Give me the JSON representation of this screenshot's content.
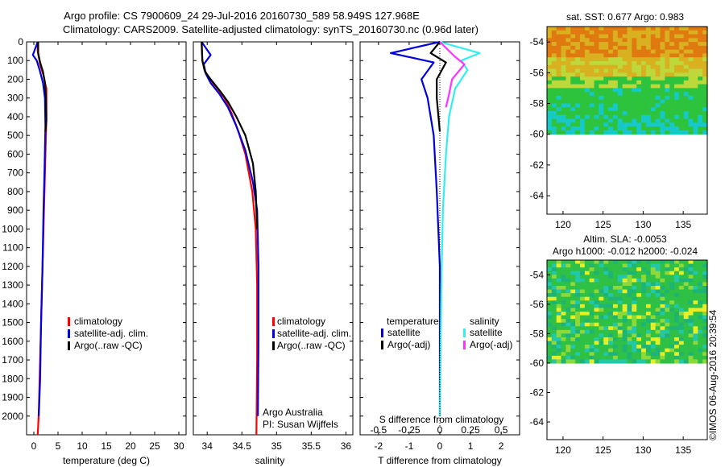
{
  "header": {
    "title_line1": "Argo profile: CS 7900609_24 29-Jul-2016 20160730_589 58.949S 127.968E",
    "title_line2": "Climatology: CARS2009. Satellite-adjusted climatology: synTS_20160730.nc (0.96d later)"
  },
  "footer": {
    "credit": "©IMOS 06-Aug-2016 20:39:54",
    "argo_australia": "Argo Australia",
    "pi": "PI: Susan Wijffels"
  },
  "colors": {
    "climatology": "#ff0000",
    "satellite": "#0000dd",
    "argo": "#000000",
    "sal_satellite": "#33eeee",
    "sal_argo": "#ff33ff"
  },
  "chart_data": [
    {
      "id": "temperature",
      "type": "line",
      "xlabel": "temperature (deg C)",
      "xlim": [
        -1.5,
        31.5
      ],
      "xticks": [
        "0",
        "5",
        "10",
        "15",
        "20",
        "25",
        "30"
      ],
      "xtick_values": [
        0,
        5,
        10,
        15,
        20,
        25,
        30
      ],
      "ylim": [
        2100,
        0
      ],
      "yticks": [
        "0",
        "100",
        "200",
        "300",
        "400",
        "500",
        "600",
        "700",
        "800",
        "900",
        "1000",
        "1100",
        "1200",
        "1300",
        "1400",
        "1500",
        "1600",
        "1700",
        "1800",
        "1900",
        "2000"
      ],
      "ytick_values": [
        0,
        100,
        200,
        300,
        400,
        500,
        600,
        700,
        800,
        900,
        1000,
        1100,
        1200,
        1300,
        1400,
        1500,
        1600,
        1700,
        1800,
        1900,
        2000
      ],
      "legend": [
        "climatology",
        "satellite-adj. clim.",
        "Argo(..raw -QC)"
      ],
      "series": [
        {
          "name": "climatology",
          "color": "#ff0000",
          "x": [
            0.8,
            0.8,
            1.3,
            2.0,
            2.6,
            2.6,
            2.4,
            2.2,
            2.0,
            1.8,
            1.5,
            1.2,
            1.0,
            0.8
          ],
          "y": [
            0,
            50,
            120,
            180,
            250,
            400,
            600,
            800,
            1000,
            1200,
            1500,
            1800,
            2000,
            2100
          ]
        },
        {
          "name": "satellite-adj. clim.",
          "color": "#0000dd",
          "x": [
            0.8,
            -0.2,
            0.6,
            1.2,
            1.9,
            2.3,
            2.4,
            2.2,
            2.0,
            1.8,
            1.5,
            1.3,
            1.1,
            1.0
          ],
          "y": [
            0,
            70,
            100,
            150,
            220,
            300,
            450,
            700,
            900,
            1200,
            1500,
            1800,
            1950,
            2000
          ]
        },
        {
          "name": "Argo(..raw -QC)",
          "color": "#000000",
          "x": [
            0.9,
            0.9,
            1.3,
            1.9,
            2.3,
            2.5,
            2.6,
            2.4
          ],
          "y": [
            0,
            60,
            110,
            160,
            220,
            300,
            420,
            480
          ]
        }
      ]
    },
    {
      "id": "salinity",
      "type": "line",
      "xlabel": "salinity",
      "xlim": [
        33.8,
        36.1
      ],
      "xticks": [
        "34",
        "34.5",
        "35",
        "35.5",
        "36"
      ],
      "xtick_values": [
        34,
        34.5,
        35,
        35.5,
        36
      ],
      "ylim": [
        2100,
        0
      ],
      "legend": [
        "climatology",
        "satellite-adj. clim.",
        "Argo(..raw -QC)"
      ],
      "series": [
        {
          "name": "climatology",
          "color": "#ff0000",
          "x": [
            33.92,
            33.93,
            33.96,
            34.04,
            34.15,
            34.25,
            34.35,
            34.45,
            34.55,
            34.65,
            34.7,
            34.72,
            34.72,
            34.71
          ],
          "y": [
            0,
            100,
            150,
            200,
            250,
            300,
            380,
            480,
            600,
            800,
            1000,
            1300,
            1700,
            2100
          ]
        },
        {
          "name": "satellite-adj. clim.",
          "color": "#0000dd",
          "x": [
            33.92,
            34.05,
            33.95,
            33.98,
            34.05,
            34.18,
            34.3,
            34.42,
            34.55,
            34.66,
            34.72,
            34.74,
            34.74,
            34.73
          ],
          "y": [
            0,
            70,
            120,
            170,
            220,
            280,
            350,
            450,
            580,
            750,
            900,
            1200,
            1600,
            2000
          ]
        },
        {
          "name": "Argo(..raw -QC)",
          "color": "#000000",
          "x": [
            33.92,
            33.93,
            33.97,
            34.05,
            34.18,
            34.3,
            34.42,
            34.55,
            34.66,
            34.7,
            34.72
          ],
          "y": [
            0,
            100,
            160,
            200,
            260,
            320,
            400,
            500,
            650,
            800,
            1000
          ]
        }
      ]
    },
    {
      "id": "difference",
      "type": "line",
      "xlabel": "T difference from climatology",
      "xlabel2": "S difference from climatology",
      "xlim": [
        -2.6,
        2.6
      ],
      "xticks": [
        "-2",
        "-1",
        "0",
        "1",
        "2"
      ],
      "xtick_values": [
        -2,
        -1,
        0,
        1,
        2
      ],
      "xticks2": [
        "-0.5",
        "-0.25",
        "0",
        "0.25",
        "0.5"
      ],
      "xtick2_values": [
        -0.5,
        -0.25,
        0,
        0.25,
        0.5
      ],
      "ylim": [
        2100,
        0
      ],
      "legend_temperature_title": "temperature",
      "legend_salinity_title": "salinity",
      "legend": [
        "satellite",
        "Argo(-adj)",
        "satellite",
        "Argo(-adj)"
      ],
      "series": [
        {
          "name": "satellite",
          "group": "temperature",
          "color": "#0000dd",
          "x": [
            0,
            -1.6,
            -0.2,
            -0.6,
            -0.4,
            -0.2,
            -0.1,
            0,
            0,
            0
          ],
          "y": [
            0,
            60,
            110,
            200,
            300,
            500,
            800,
            1200,
            1700,
            2000
          ]
        },
        {
          "name": "Argo(-adj)",
          "group": "temperature",
          "color": "#000000",
          "x": [
            0,
            -0.3,
            0.2,
            -0.1,
            -0.1,
            0
          ],
          "y": [
            0,
            60,
            110,
            200,
            300,
            480
          ]
        },
        {
          "name": "satellite",
          "group": "salinity",
          "color": "#33eeee",
          "x": [
            0,
            1.3,
            0.7,
            0.9,
            0.5,
            0.3,
            0.2,
            0.1,
            0.05,
            0
          ],
          "y": [
            0,
            60,
            100,
            150,
            250,
            400,
            600,
            900,
            1300,
            2000
          ]
        },
        {
          "name": "Argo(-adj)",
          "group": "salinity",
          "color": "#ff33ff",
          "x": [
            0,
            0.5,
            0.8,
            0.4,
            0.3,
            0.2
          ],
          "y": [
            0,
            80,
            120,
            200,
            280,
            350
          ]
        }
      ]
    },
    {
      "id": "sst_map",
      "type": "heatmap",
      "title": "sat. SST: 0.677 Argo: 0.983",
      "xlim": [
        118,
        138
      ],
      "ylim": [
        -65.2,
        -53
      ],
      "xticks": [
        "120",
        "125",
        "130",
        "135"
      ],
      "xtick_values": [
        120,
        125,
        130,
        135
      ],
      "yticks": [
        "-54",
        "-56",
        "-58",
        "-60",
        "-62",
        "-64"
      ],
      "ytick_values": [
        -54,
        -56,
        -58,
        -60,
        -62,
        -64
      ],
      "data_extent_lat": [
        -60,
        -53
      ],
      "colors": [
        "#e07a10",
        "#d8b020",
        "#bcd83a",
        "#2ec33c",
        "#16c8c8"
      ]
    },
    {
      "id": "sla_map",
      "type": "heatmap",
      "title": "Altim. SLA: -0.0053",
      "subtitle": "Argo h1000: -0.012 h2000: -0.024",
      "xlim": [
        118,
        138
      ],
      "ylim": [
        -65.2,
        -53
      ],
      "xticks": [
        "120",
        "125",
        "130",
        "135"
      ],
      "xtick_values": [
        120,
        125,
        130,
        135
      ],
      "yticks": [
        "-54",
        "-56",
        "-58",
        "-60",
        "-62",
        "-64"
      ],
      "ytick_values": [
        -54,
        -56,
        -58,
        -60,
        -62,
        -64
      ],
      "data_extent_lat": [
        -60,
        -53
      ],
      "colors": [
        "#1eb478",
        "#2fc046",
        "#8ed83a",
        "#e6ee28",
        "#22c8a8"
      ]
    }
  ]
}
